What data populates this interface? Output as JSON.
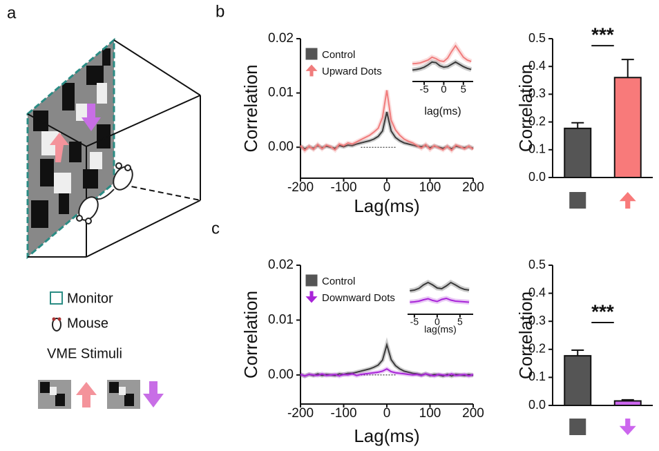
{
  "panel_labels": [
    "a",
    "b",
    "c"
  ],
  "diagram": {
    "legend": [
      "Monitor",
      "Mouse"
    ],
    "stimuli_label": "VME Stimuli"
  },
  "chart_data": [
    {
      "type": "line",
      "x_label": "Lag(ms)",
      "y_label": "Correlation",
      "x": [
        -200,
        -190,
        -180,
        -170,
        -160,
        -150,
        -140,
        -130,
        -120,
        -110,
        -100,
        -90,
        -80,
        -70,
        -60,
        -50,
        -40,
        -30,
        -20,
        -10,
        0,
        10,
        20,
        30,
        40,
        50,
        60,
        70,
        80,
        90,
        100,
        110,
        120,
        130,
        140,
        150,
        160,
        170,
        180,
        190,
        200
      ],
      "series": [
        {
          "name": "Control",
          "color": "#3a3a3a",
          "marker": "square",
          "values": [
            0.0002,
            -0.0003,
            0.0001,
            -0.0002,
            0.0003,
            -0.0001,
            0.0002,
            0,
            -0.0002,
            0.0003,
            0.0001,
            0.0004,
            0.0003,
            0.0006,
            0.0008,
            0.001,
            0.0012,
            0.0015,
            0.002,
            0.003,
            0.0065,
            0.003,
            0.0018,
            0.0012,
            0.0008,
            0.0006,
            0.0004,
            0.0002,
            0.0001,
            0.0003,
            -0.0001,
            0.0002,
            0,
            -0.0002,
            0.0001,
            -0.0003,
            0.0002,
            0,
            -0.0001,
            0.0001,
            -0.0002
          ]
        },
        {
          "name": "Upward Dots",
          "color": "#f07c7c",
          "marker": "arrow-up",
          "values": [
            0.0003,
            -0.0006,
            0.0002,
            -0.0004,
            0.0005,
            -0.0003,
            0.0004,
            0.0001,
            -0.0005,
            0.0006,
            0.0003,
            0.0008,
            0.0006,
            0.001,
            0.0014,
            0.0018,
            0.0022,
            0.0028,
            0.0035,
            0.0055,
            0.0105,
            0.005,
            0.0032,
            0.0022,
            0.0015,
            0.0011,
            0.0008,
            0.0003,
            -0.0002,
            0.0005,
            -0.0004,
            0.0003,
            -0.0001,
            -0.0005,
            0.0002,
            -0.0006,
            0.0004,
            0.0001,
            -0.0003,
            0.0002,
            -0.0004
          ]
        }
      ],
      "xlim": [
        -200,
        200
      ],
      "ylim": [
        -0.0057,
        0.02
      ],
      "xticks": [
        -200,
        -100,
        0,
        100,
        200
      ],
      "yticks": [
        {
          "value": 0,
          "label": "0.00"
        },
        0.01,
        0.02
      ],
      "legend": "upper left"
    },
    {
      "type": "line",
      "x_label": "lag(ms)",
      "x": [
        -8,
        -7,
        -6,
        -5,
        -4,
        -3,
        -2,
        -1,
        0,
        1,
        2,
        3,
        4,
        5,
        6,
        7
      ],
      "series": [
        {
          "name": "Control",
          "color": "#3a3a3a",
          "values": [
            0.004,
            0.0042,
            0.0045,
            0.005,
            0.0058,
            0.0068,
            0.0066,
            0.0055,
            0.005,
            0.0052,
            0.006,
            0.0068,
            0.006,
            0.0052,
            0.0046,
            0.0042
          ]
        },
        {
          "name": "Upward Dots",
          "color": "#f07c7c",
          "values": [
            0.0062,
            0.0063,
            0.0065,
            0.007,
            0.0075,
            0.0085,
            0.008,
            0.0072,
            0.007,
            0.0082,
            0.0105,
            0.0125,
            0.0105,
            0.0085,
            0.0075,
            0.007
          ]
        }
      ],
      "xlim": [
        -8,
        7.5
      ],
      "ylim": [
        0,
        0.014
      ],
      "xticks": [
        -5,
        0,
        5
      ]
    },
    {
      "type": "bar",
      "y_label": "Correlation",
      "categories": [
        null,
        null
      ],
      "markers": [
        "square",
        "arrow-up"
      ],
      "values": [
        0.177,
        0.36
      ],
      "errors": [
        0.02,
        0.065
      ],
      "colors": [
        "#555555",
        "#f87a7a"
      ],
      "ylim": [
        0,
        0.5
      ],
      "yticks": [
        {
          "value": 0,
          "label": "0.0"
        },
        0.1,
        0.2,
        0.3,
        0.4,
        0.5
      ],
      "annotation": "***"
    },
    {
      "type": "line",
      "x_label": "Lag(ms)",
      "y_label": "Correlation",
      "x": [
        -200,
        -190,
        -180,
        -170,
        -160,
        -150,
        -140,
        -130,
        -120,
        -110,
        -100,
        -90,
        -80,
        -70,
        -60,
        -50,
        -40,
        -30,
        -20,
        -10,
        0,
        10,
        20,
        30,
        40,
        50,
        60,
        70,
        80,
        90,
        100,
        110,
        120,
        130,
        140,
        150,
        160,
        170,
        180,
        190,
        200
      ],
      "series": [
        {
          "name": "Control",
          "color": "#3a3a3a",
          "marker": "square",
          "values": [
            0.0001,
            -0.0002,
            0.0001,
            -0.0001,
            0.0002,
            -0.0001,
            0.0001,
            0,
            -0.0001,
            0.0002,
            0.0001,
            0.0003,
            0.0003,
            0.0005,
            0.0007,
            0.0009,
            0.0011,
            0.0014,
            0.0018,
            0.0027,
            0.0055,
            0.0028,
            0.0017,
            0.0011,
            0.0007,
            0.0005,
            0.0003,
            0.0002,
            0,
            0.0002,
            -0.0001,
            0.0001,
            0,
            -0.0002,
            0.0001,
            -0.0002,
            0.0001,
            0,
            -0.0001,
            0.0001,
            -0.0001
          ]
        },
        {
          "name": "Downward Dots",
          "color": "#a824d8",
          "marker": "arrow-down",
          "values": [
            0.0001,
            -0.0002,
            0.0001,
            0,
            -0.0001,
            0.0002,
            -0.0001,
            0,
            0.0001,
            -0.0002,
            0.0001,
            0,
            0.0002,
            -0.0001,
            0.0001,
            0.0002,
            0.0003,
            0.0004,
            0.0005,
            0.0007,
            0.0011,
            0.0006,
            0.0004,
            0.0003,
            0.0002,
            0.0001,
            0,
            0.0001,
            -0.0001,
            0.0002,
            0,
            -0.0002,
            0.0001,
            0,
            -0.0001,
            0.0002,
            -0.0001,
            0,
            0.0001,
            -0.0002,
            0.0001
          ]
        }
      ],
      "xlim": [
        -200,
        200
      ],
      "ylim": [
        -0.0053,
        0.02
      ],
      "xticks": [
        -200,
        -100,
        0,
        100,
        200
      ],
      "yticks": [
        {
          "value": 0,
          "label": "0.00"
        },
        0.01,
        0.02
      ],
      "legend": "upper left"
    },
    {
      "type": "line",
      "x_label": "lag(ms)",
      "x": [
        -6,
        -5,
        -4,
        -3,
        -2,
        -1,
        0,
        1,
        2,
        3,
        4,
        5,
        6,
        7
      ],
      "series": [
        {
          "name": "Control",
          "color": "#3a3a3a",
          "values": [
            0.0068,
            0.007,
            0.0075,
            0.0085,
            0.0092,
            0.0085,
            0.0076,
            0.0074,
            0.0082,
            0.0092,
            0.0085,
            0.0077,
            0.0072,
            0.007
          ]
        },
        {
          "name": "Downward Dots",
          "color": "#a824d8",
          "values": [
            0.0035,
            0.0036,
            0.0038,
            0.0042,
            0.0045,
            0.004,
            0.0037,
            0.0043,
            0.0046,
            0.0041,
            0.0038,
            0.0037,
            0.0036,
            0.0035
          ]
        }
      ],
      "xlim": [
        -6.5,
        7.9
      ],
      "ylim": [
        0,
        0.014
      ],
      "xticks": [
        -5,
        0,
        5
      ]
    },
    {
      "type": "bar",
      "y_label": "Correlation",
      "categories": [
        null,
        null
      ],
      "markers": [
        "square",
        "arrow-down"
      ],
      "values": [
        0.177,
        0.016
      ],
      "errors": [
        0.02,
        0.004
      ],
      "colors": [
        "#555555",
        "#cc66ee"
      ],
      "ylim": [
        0,
        0.5
      ],
      "yticks": [
        {
          "value": 0,
          "label": "0.0"
        },
        0.1,
        0.2,
        0.3,
        0.4,
        0.5
      ],
      "annotation": "***"
    }
  ]
}
